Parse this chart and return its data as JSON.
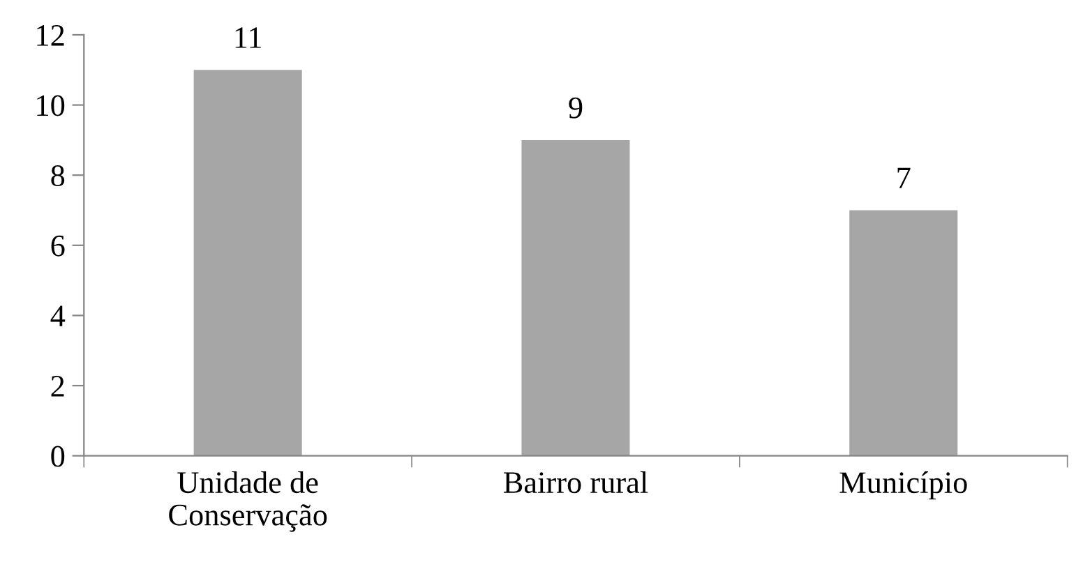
{
  "chart_data": {
    "type": "bar",
    "categories": [
      "Unidade de\nConservação",
      "Bairro rural",
      "Município"
    ],
    "values": [
      11,
      9,
      7
    ],
    "color": "#a6a6a6",
    "ylim": [
      0,
      12
    ],
    "yticks": [
      0,
      2,
      4,
      6,
      8,
      10,
      12
    ],
    "data_labels": true,
    "grid": false,
    "legend": false
  }
}
